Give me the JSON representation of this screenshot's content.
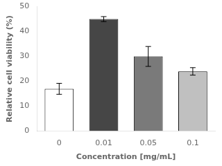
{
  "chart_data": {
    "type": "bar",
    "xlabel": "Concentration [mg/mL]",
    "ylabel": "Relative cell viability (%)",
    "categories": [
      "0",
      "0.01",
      "0.05",
      "0.1"
    ],
    "values": [
      17.0,
      45.0,
      30.0,
      24.0
    ],
    "errors": [
      2.2,
      1.0,
      4.0,
      1.5
    ],
    "colors": [
      "#ffffff",
      "#464646",
      "#7a7a7a",
      "#c0c0c0"
    ],
    "ylim": [
      0,
      50
    ],
    "yticks": [
      0,
      10,
      20,
      30,
      40,
      50
    ],
    "grid": false
  }
}
